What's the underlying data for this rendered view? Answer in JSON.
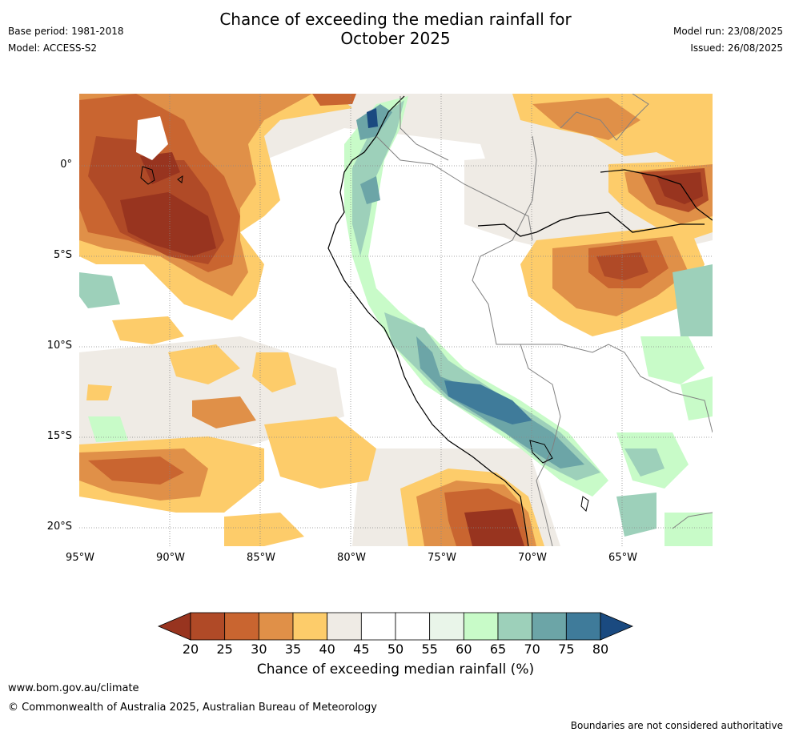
{
  "title": {
    "line1": "Chance of exceeding the median rainfall for",
    "line2": "October 2025"
  },
  "meta_left": {
    "base_period": "Base period: 1981-2018",
    "model": "Model: ACCESS-S2"
  },
  "meta_right": {
    "model_run": "Model run: 23/08/2025",
    "issued": "Issued: 26/08/2025"
  },
  "lat_labels": [
    "0°",
    "5°S",
    "10°S",
    "15°S",
    "20°S"
  ],
  "lon_labels": [
    "95°W",
    "90°W",
    "85°W",
    "80°W",
    "75°W",
    "70°W",
    "65°W"
  ],
  "colorbar": {
    "ticks": [
      "20",
      "25",
      "30",
      "35",
      "40",
      "45",
      "50",
      "55",
      "60",
      "65",
      "70",
      "75",
      "80"
    ],
    "colors": [
      "#98341f",
      "#b04a27",
      "#c96530",
      "#e09048",
      "#fdcc6a",
      "#efebe5",
      "#ffffff",
      "#ffffff",
      "#e9f5e9",
      "#c8fbc8",
      "#9dd0ba",
      "#6ca5a7",
      "#3f7b9a"
    ],
    "under_color": "#98341f",
    "over_color": "#1a4a80",
    "label": "Chance of exceeding median rainfall (%)"
  },
  "footer": {
    "website": "www.bom.gov.au/climate",
    "copyright": "© Commonwealth of Australia 2025, Australian Bureau of Meteorology",
    "disclaimer": "Boundaries are not considered authoritative"
  }
}
